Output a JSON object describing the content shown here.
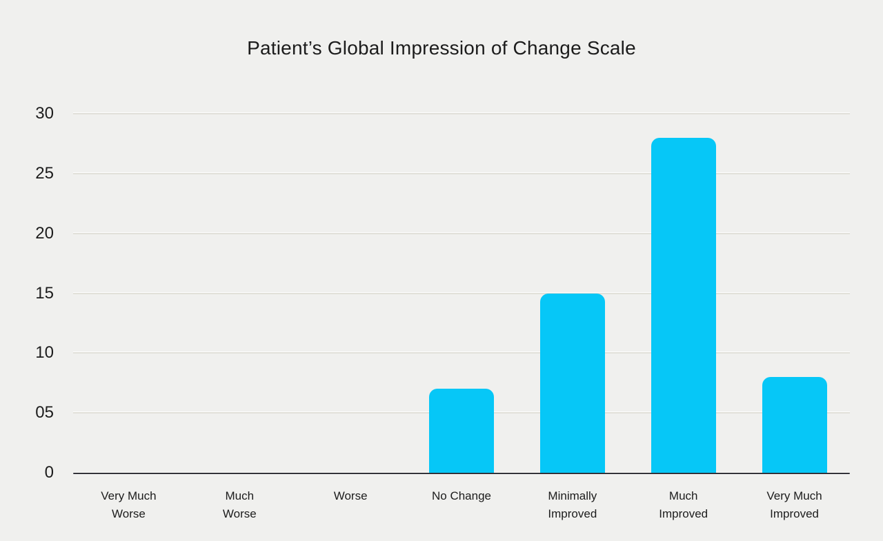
{
  "page_title": "Patient’s Global Impression of Change Scale",
  "colors": {
    "background": "#f0f0ee",
    "bar": "#06c7f7",
    "gridline": "#e1e0d9",
    "axis_line": "#33333a",
    "text": "#1c1c1c"
  },
  "chart_data": {
    "type": "bar",
    "title": "Patient’s Global Impression of Change Scale",
    "categories": [
      "Very Much Worse",
      "Much Worse",
      "Worse",
      "No Change",
      "Minimally Improved",
      "Much Improved",
      "Very Much Improved"
    ],
    "category_label_lines": [
      [
        "Very Much",
        "Worse"
      ],
      [
        "Much",
        "Worse"
      ],
      [
        "Worse"
      ],
      [
        "No Change"
      ],
      [
        "Minimally",
        "Improved"
      ],
      [
        "Much",
        "Improved"
      ],
      [
        "Very Much",
        "Improved"
      ]
    ],
    "values": [
      0,
      0,
      0,
      7,
      15,
      28,
      8
    ],
    "yticks": [
      {
        "value": 0,
        "label": "0"
      },
      {
        "value": 5,
        "label": "05"
      },
      {
        "value": 10,
        "label": "10"
      },
      {
        "value": 15,
        "label": "15"
      },
      {
        "value": 20,
        "label": "20"
      },
      {
        "value": 25,
        "label": "25"
      },
      {
        "value": 30,
        "label": "30"
      }
    ],
    "ylim": [
      0,
      30
    ],
    "xlabel": "",
    "ylabel": "",
    "grid": true,
    "legend": false,
    "bar_color": "#06c7f7"
  }
}
